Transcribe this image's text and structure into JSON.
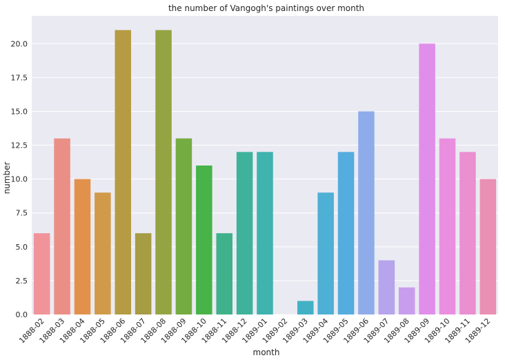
{
  "chart_data": {
    "type": "bar",
    "title": "the number of Vangogh's paintings over month",
    "xlabel": "month",
    "ylabel": "number",
    "categories": [
      "1888-02",
      "1888-03",
      "1888-04",
      "1888-05",
      "1888-06",
      "1888-07",
      "1888-08",
      "1888-09",
      "1888-10",
      "1888-11",
      "1888-12",
      "1889-01",
      "1889-02",
      "1889-03",
      "1889-04",
      "1889-05",
      "1889-06",
      "1889-07",
      "1889-08",
      "1889-09",
      "1889-10",
      "1889-11",
      "1889-12"
    ],
    "values": [
      6,
      13,
      10,
      9,
      21,
      6,
      21,
      13,
      11,
      6,
      12,
      12,
      0,
      1,
      9,
      12,
      15,
      4,
      2,
      20,
      13,
      12,
      10
    ],
    "colors": [
      "#f0949a",
      "#ea8f85",
      "#e2914c",
      "#d19a4a",
      "#b59c44",
      "#a59c44",
      "#95a443",
      "#74ac41",
      "#47b348",
      "#3fb18b",
      "#3fb29c",
      "#3fb3ae",
      "#42b4bc",
      "#43b1c5",
      "#4db0d4",
      "#54acdf",
      "#8eacea",
      "#b6a4ec",
      "#c99ded",
      "#df8fe9",
      "#ea8fdf",
      "#ea8fcf",
      "#ea90b4"
    ],
    "yticks": [
      "0.0",
      "2.5",
      "5.0",
      "7.5",
      "10.0",
      "12.5",
      "15.0",
      "17.5",
      "20.0"
    ],
    "ylim": [
      0,
      22.05
    ],
    "grid": true,
    "background": "#eaeaf2"
  }
}
